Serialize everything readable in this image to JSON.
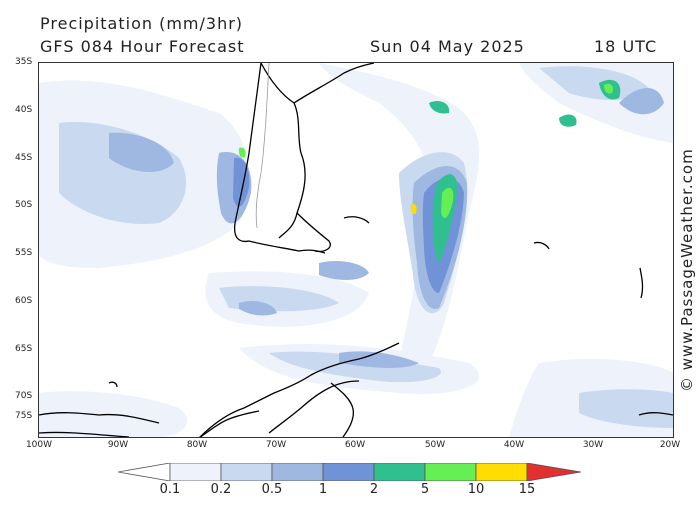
{
  "header": {
    "title": "Precipitation (mm/3hr)",
    "subtitle": "GFS 084 Hour Forecast",
    "date": "Sun 04 May 2025",
    "time": "18 UTC"
  },
  "credit": "© www.PassageWeather.com",
  "lat_labels": [
    "35S",
    "40S",
    "45S",
    "50S",
    "55S",
    "60S",
    "65S",
    "70S",
    "75S"
  ],
  "lon_labels": [
    "100W",
    "90W",
    "80W",
    "70W",
    "60W",
    "50W",
    "40W",
    "30W",
    "20W"
  ],
  "legend": {
    "labels": [
      "0.1",
      "0.2",
      "0.5",
      "1",
      "2",
      "5",
      "10",
      "15"
    ],
    "colors": [
      "#eef3fb",
      "#c8d9f0",
      "#9fb8e2",
      "#6f93d6",
      "#30c090",
      "#66ee55",
      "#ffdd00",
      "#ff8800",
      "#e03030"
    ]
  }
}
